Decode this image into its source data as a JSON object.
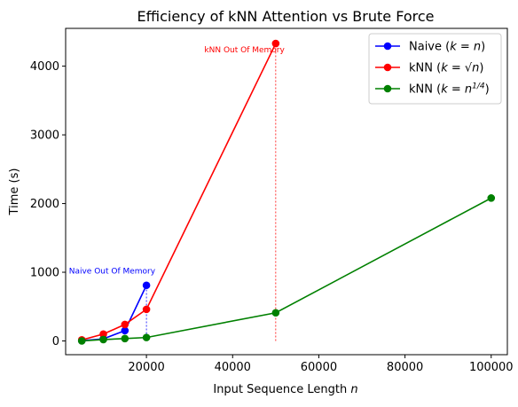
{
  "chart_data": {
    "type": "line",
    "title": "Efficiency of kNN Attention vs Brute Force",
    "xlabel": "Input Sequence Length",
    "xlabel_var": "n",
    "ylabel": "Time (s)",
    "xlim": [
      1250,
      103750
    ],
    "ylim": [
      -200,
      4550
    ],
    "xticks": [
      20000,
      40000,
      60000,
      80000,
      100000
    ],
    "xtick_labels": [
      "20000",
      "40000",
      "60000",
      "80000",
      "100000"
    ],
    "yticks": [
      0,
      1000,
      2000,
      3000,
      4000
    ],
    "ytick_labels": [
      "0",
      "1000",
      "2000",
      "3000",
      "4000"
    ],
    "grid": false,
    "legend_position": "top-right",
    "series": [
      {
        "name_prefix": "Naive (",
        "name_math": "k = n",
        "name_suffix": ")",
        "color": "#0000ff",
        "x": [
          5000,
          10000,
          15000,
          20000
        ],
        "y": [
          5,
          30,
          150,
          810
        ]
      },
      {
        "name_prefix": "kNN (",
        "name_math": "k = √n",
        "name_suffix": ")",
        "color": "#ff0000",
        "x": [
          5000,
          10000,
          15000,
          20000,
          50000
        ],
        "y": [
          15,
          100,
          240,
          460,
          4330
        ]
      },
      {
        "name_prefix": "kNN (",
        "name_math": "k = n",
        "name_sup": "1/4",
        "name_suffix": ")",
        "color": "#008000",
        "x": [
          5000,
          10000,
          15000,
          20000,
          50000,
          100000
        ],
        "y": [
          0,
          20,
          35,
          50,
          410,
          2080
        ]
      }
    ],
    "annotations": [
      {
        "text": "Naive Out Of Memory",
        "color": "#0000ff",
        "label_x": 20000,
        "label_y": 980,
        "anchor": "end",
        "vline_x": 20000,
        "vline_y": [
          0,
          810
        ]
      },
      {
        "text": "kNN Out Of Memory",
        "color": "#ff0000",
        "label_x": 50000,
        "label_y": 4200,
        "anchor": "end",
        "vline_x": 50000,
        "vline_y": [
          0,
          4330
        ]
      }
    ]
  }
}
